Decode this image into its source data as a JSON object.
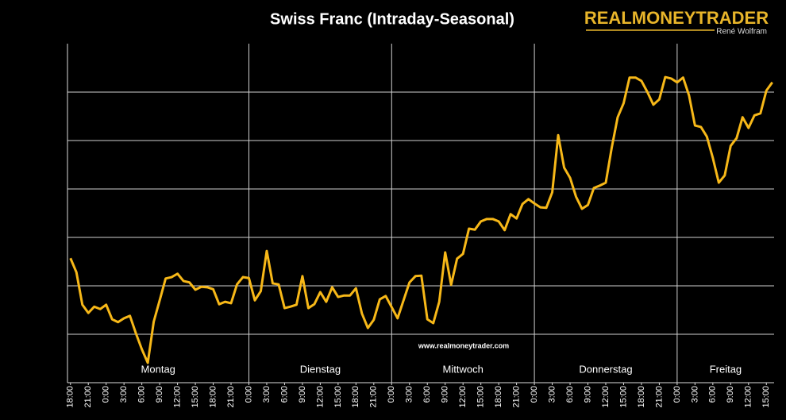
{
  "chart_data": {
    "type": "line",
    "title": "Swiss Franc (Intraday-Seasonal)",
    "logo": {
      "name": "REALMONEYTRADER",
      "author": "René Wolfram"
    },
    "watermark": "www.realmoneytrader.com",
    "color": "#f7b818",
    "grid": true,
    "x": [
      0,
      1,
      2,
      3,
      4,
      5,
      6,
      7,
      8,
      9,
      10,
      11,
      12,
      13,
      14,
      15,
      16,
      17,
      18,
      19,
      20,
      21,
      22,
      23,
      24,
      25,
      26,
      27,
      28,
      29,
      30,
      31,
      32,
      33,
      34,
      35,
      36,
      37,
      38,
      39,
      40,
      41,
      42,
      43,
      44,
      45,
      46,
      47,
      48,
      49,
      50,
      51,
      52,
      53,
      54,
      55,
      56,
      57,
      58,
      59,
      60,
      61,
      62,
      63,
      64,
      65,
      66,
      67,
      68,
      69,
      70,
      71,
      72,
      73,
      74,
      75,
      76,
      77,
      78,
      79,
      80,
      81,
      82,
      83,
      84,
      85,
      86,
      87,
      88,
      89,
      90,
      91,
      92,
      93,
      94,
      95,
      96,
      97,
      98,
      99,
      100,
      101,
      102,
      103,
      104,
      105,
      106,
      107,
      108,
      109,
      110,
      111,
      112,
      113,
      114,
      115,
      116,
      117,
      118
    ],
    "values": [
      2.57,
      2.28,
      1.61,
      1.44,
      1.57,
      1.52,
      1.61,
      1.31,
      1.25,
      1.33,
      1.38,
      1.02,
      0.69,
      0.41,
      1.26,
      1.7,
      2.15,
      2.18,
      2.25,
      2.1,
      2.07,
      1.92,
      1.98,
      1.97,
      1.93,
      1.62,
      1.67,
      1.64,
      2.03,
      2.18,
      2.16,
      1.7,
      1.89,
      2.72,
      2.05,
      2.03,
      1.54,
      1.57,
      1.61,
      2.2,
      1.54,
      1.62,
      1.87,
      1.67,
      1.97,
      1.77,
      1.8,
      1.8,
      1.95,
      1.43,
      1.13,
      1.3,
      1.72,
      1.79,
      1.56,
      1.33,
      1.7,
      2.07,
      2.2,
      2.21,
      1.31,
      1.23,
      1.67,
      2.69,
      2.02,
      2.56,
      2.66,
      3.18,
      3.16,
      3.33,
      3.38,
      3.38,
      3.33,
      3.15,
      3.48,
      3.39,
      3.69,
      3.79,
      3.7,
      3.62,
      3.61,
      3.93,
      5.11,
      4.44,
      4.23,
      3.84,
      3.59,
      3.67,
      4.02,
      4.07,
      4.13,
      4.85,
      5.48,
      5.77,
      6.3,
      6.3,
      6.23,
      6.0,
      5.74,
      5.85,
      6.31,
      6.28,
      6.2,
      6.3,
      5.93,
      5.31,
      5.28,
      5.08,
      4.64,
      4.13,
      4.28,
      4.89,
      5.05,
      5.48,
      5.26,
      5.52,
      5.56,
      6.03,
      6.2
    ],
    "xlim": [
      -0.5,
      118.3
    ],
    "ylim": [
      0,
      7
    ],
    "yticks": [
      1,
      2,
      3,
      4,
      5,
      6
    ],
    "xticks": [
      {
        "value": 0,
        "label": "18:00"
      },
      {
        "value": 3,
        "label": "21:00"
      },
      {
        "value": 6,
        "label": "0:00"
      },
      {
        "value": 9,
        "label": "3:00"
      },
      {
        "value": 12,
        "label": "6:00"
      },
      {
        "value": 15,
        "label": "9:00"
      },
      {
        "value": 18,
        "label": "12:00"
      },
      {
        "value": 21,
        "label": "15:00"
      },
      {
        "value": 24,
        "label": "18:00"
      },
      {
        "value": 27,
        "label": "21:00"
      },
      {
        "value": 30,
        "label": "0:00"
      },
      {
        "value": 33,
        "label": "3:00"
      },
      {
        "value": 36,
        "label": "6:00"
      },
      {
        "value": 39,
        "label": "9:00"
      },
      {
        "value": 42,
        "label": "12:00"
      },
      {
        "value": 45,
        "label": "15:00"
      },
      {
        "value": 48,
        "label": "18:00"
      },
      {
        "value": 51,
        "label": "21:00"
      },
      {
        "value": 54,
        "label": "0:00"
      },
      {
        "value": 57,
        "label": "3:00"
      },
      {
        "value": 60,
        "label": "6:00"
      },
      {
        "value": 63,
        "label": "9:00"
      },
      {
        "value": 66,
        "label": "12:00"
      },
      {
        "value": 69,
        "label": "15:00"
      },
      {
        "value": 72,
        "label": "18:00"
      },
      {
        "value": 75,
        "label": "21:00"
      },
      {
        "value": 78,
        "label": "0:00"
      },
      {
        "value": 81,
        "label": "3:00"
      },
      {
        "value": 84,
        "label": "6:00"
      },
      {
        "value": 87,
        "label": "9:00"
      },
      {
        "value": 90,
        "label": "12:00"
      },
      {
        "value": 93,
        "label": "15:00"
      },
      {
        "value": 96,
        "label": "18:00"
      },
      {
        "value": 99,
        "label": "21:00"
      },
      {
        "value": 102,
        "label": "0:00"
      },
      {
        "value": 105,
        "label": "3:00"
      },
      {
        "value": 108,
        "label": "6:00"
      },
      {
        "value": 111,
        "label": "9:00"
      },
      {
        "value": 114,
        "label": "12:00"
      },
      {
        "value": 117,
        "label": "15:00"
      }
    ],
    "days": [
      {
        "label": "Montag",
        "from": -0.5,
        "to": 30
      },
      {
        "label": "Dienstag",
        "from": 30,
        "to": 54
      },
      {
        "label": "Mittwoch",
        "from": 54,
        "to": 78
      },
      {
        "label": "Donnerstag",
        "from": 78,
        "to": 102
      },
      {
        "label": "Freitag",
        "from": 102,
        "to": 118.3
      }
    ]
  }
}
